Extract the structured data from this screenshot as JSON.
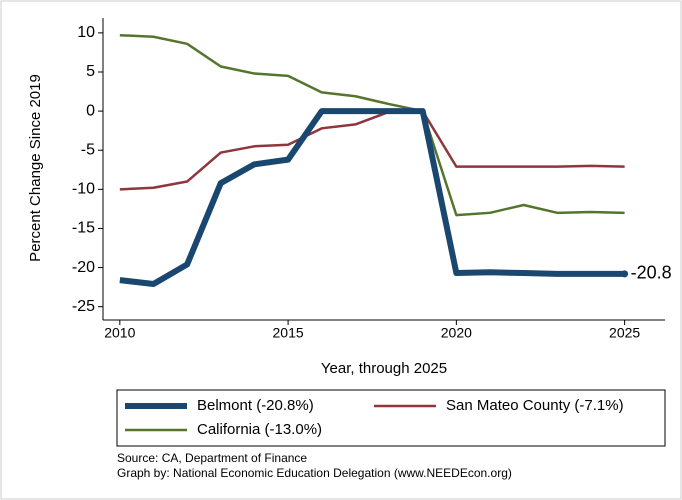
{
  "chart_data": {
    "type": "line",
    "y_label": "Percent Change Since 2019",
    "x_label": "Year, through 2025",
    "x": [
      2010,
      2011,
      2012,
      2013,
      2014,
      2015,
      2016,
      2017,
      2018,
      2019,
      2020,
      2021,
      2022,
      2023,
      2024,
      2025
    ],
    "series": [
      {
        "name": "Belmont (-20.8%)",
        "color": "#1a476f",
        "width": 6,
        "values": [
          -21.6,
          -22.1,
          -19.6,
          -9.2,
          -6.8,
          -6.2,
          0,
          0,
          0,
          0,
          -20.7,
          -20.6,
          -20.7,
          -20.8,
          -20.8,
          -20.8
        ]
      },
      {
        "name": "San Mateo County (-7.1%)",
        "color": "#90353b",
        "width": 2.5,
        "values": [
          -10,
          -9.8,
          -9,
          -5.3,
          -4.5,
          -4.3,
          -2.2,
          -1.7,
          -0.1,
          0,
          -7.1,
          -7.1,
          -7.1,
          -7.1,
          -7.0,
          -7.1
        ]
      },
      {
        "name": "California (-13.0%)",
        "color": "#55752f",
        "width": 2.5,
        "values": [
          9.7,
          9.5,
          8.6,
          5.7,
          4.8,
          4.5,
          2.4,
          1.9,
          0.9,
          0,
          -13.3,
          -13.0,
          -12.0,
          -13.0,
          -12.9,
          -13.0
        ]
      }
    ],
    "annotation": {
      "text": "-20.8",
      "x": 2025,
      "y": -20.8
    },
    "xlim": [
      2009.5,
      2026.2
    ],
    "ylim": [
      -26.7,
      11.9
    ],
    "xticks": [
      2010,
      2015,
      2020,
      2025
    ],
    "yticks": [
      10,
      5,
      0,
      -5,
      -10,
      -15,
      -20,
      -25
    ],
    "grid": false,
    "notes": [
      "Source: CA, Department of Finance",
      "Graph by: National Economic Education Delegation (www.NEEDEcon.org)"
    ]
  }
}
